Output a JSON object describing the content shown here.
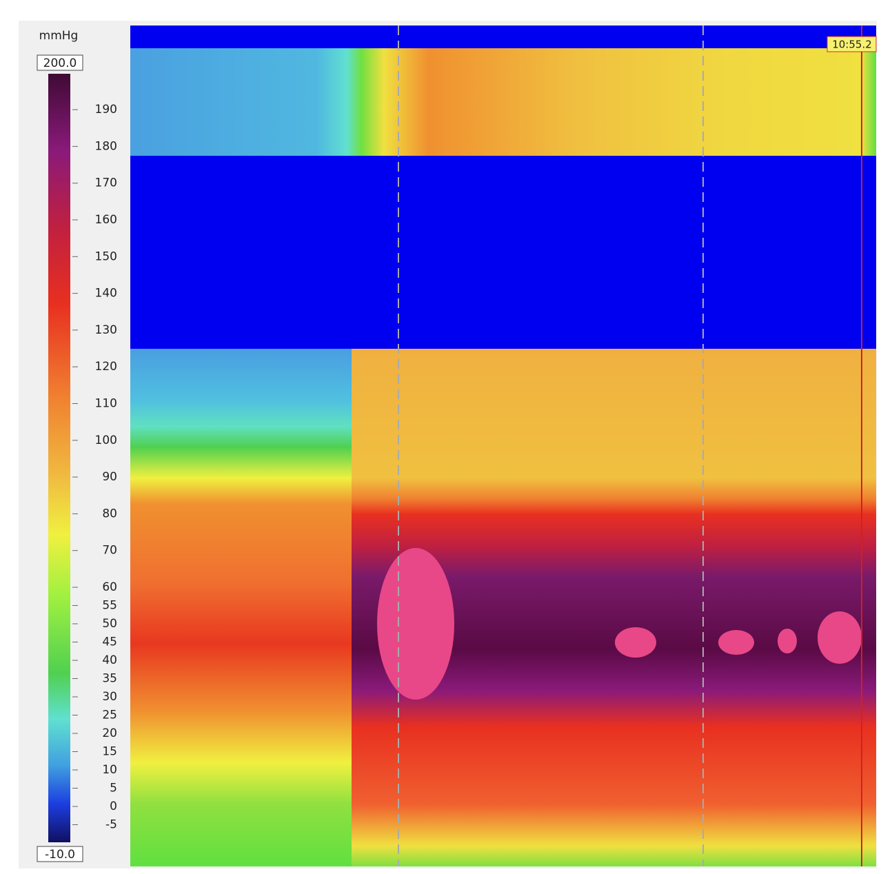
{
  "scale": {
    "unit": "mmHg",
    "max_label": "200.0",
    "min_label": "-10.0",
    "ticks": [
      190,
      180,
      170,
      160,
      150,
      140,
      130,
      120,
      110,
      100,
      90,
      80,
      70,
      60,
      55,
      50,
      45,
      40,
      35,
      30,
      25,
      20,
      15,
      10,
      5,
      0,
      -5
    ]
  },
  "plot": {
    "time_marker": "10:55.2"
  }
}
